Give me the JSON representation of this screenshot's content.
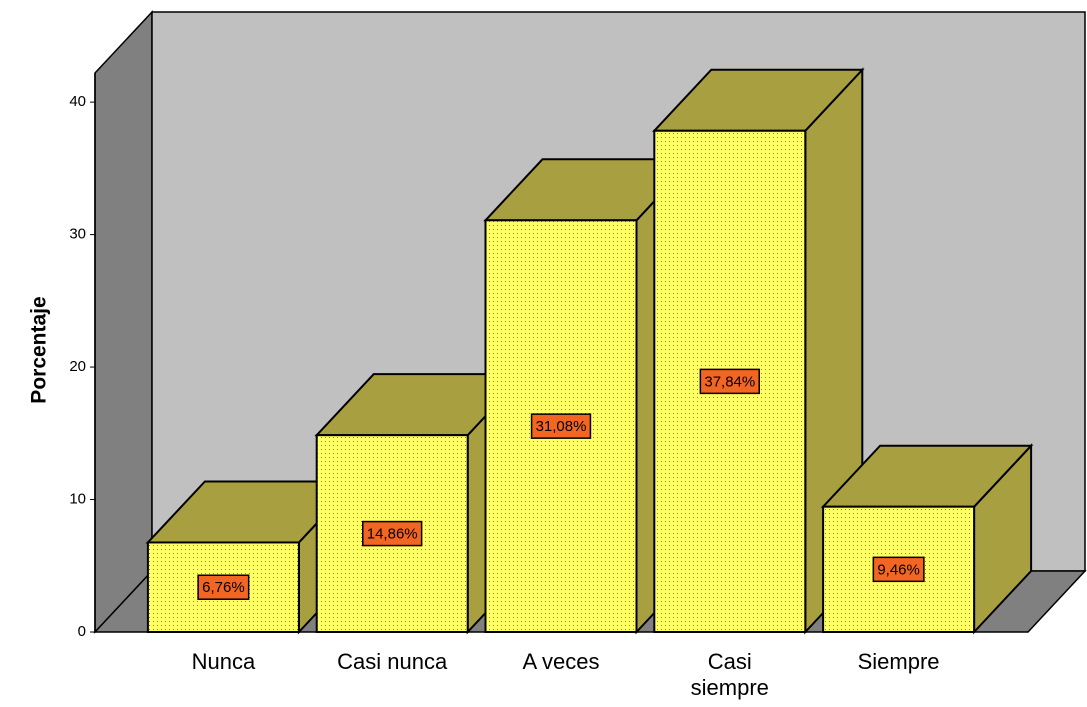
{
  "chart_data": {
    "type": "bar3d",
    "y_label": "Porcentaje",
    "categories": [
      "Nunca",
      "Casi nunca",
      "A veces",
      "Casi siempre",
      "Siempre"
    ],
    "values": [
      6.76,
      14.86,
      31.08,
      37.84,
      9.46
    ],
    "value_labels": [
      "6,76%",
      "14,86%",
      "31,08%",
      "37,84%",
      "9,46%"
    ],
    "color": "#ffff66",
    "depth_color": "#a8a040",
    "label_color": "#f26522",
    "ylim": [
      0,
      42.2
    ],
    "yticks": [
      0,
      10,
      20,
      30,
      40
    ]
  }
}
